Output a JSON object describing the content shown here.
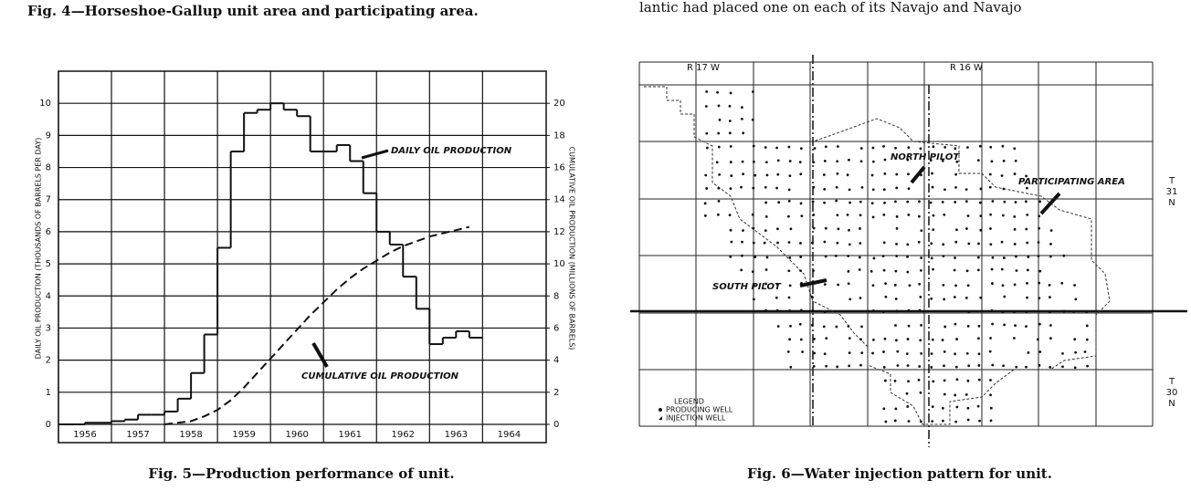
{
  "header": {
    "left_caption": "Fig. 4—Horseshoe-Gallup unit area and participating area.",
    "right_text": "lantic had placed one on each of its Navajo and Navajo"
  },
  "chart_data": {
    "type": "line",
    "caption": "Fig. 5—Production performance of unit.",
    "ylabel": "DAILY OIL PRODUCTION (THOUSANDS OF BARRELS PER DAY)",
    "y2label": "CUMULATIVE OIL PRODUCTION (MILLIONS OF BARRELS)",
    "x": [
      1956.0,
      1956.25,
      1956.5,
      1956.75,
      1957.0,
      1957.25,
      1957.5,
      1957.75,
      1958.0,
      1958.25,
      1958.5,
      1958.75,
      1959.0,
      1959.25,
      1959.5,
      1959.75,
      1960.0,
      1960.25,
      1960.5,
      1960.75,
      1961.0,
      1961.25,
      1961.5,
      1961.75,
      1962.0,
      1962.25,
      1962.5,
      1962.75,
      1963.0,
      1963.25,
      1963.5,
      1963.75
    ],
    "series": [
      {
        "name": "DAILY OIL PRODUCTION",
        "color": "#111",
        "step": true,
        "values": [
          0,
          0,
          0.05,
          0.05,
          0.1,
          0.15,
          0.3,
          0.3,
          0.4,
          0.8,
          1.6,
          2.8,
          5.5,
          8.5,
          9.7,
          9.8,
          10.0,
          9.8,
          9.6,
          8.5,
          8.5,
          8.7,
          8.2,
          7.2,
          6.0,
          5.6,
          4.6,
          3.6,
          2.5,
          2.7,
          2.9,
          2.7
        ]
      },
      {
        "name": "CUMULATIVE OIL PRODUCTION",
        "color": "#111",
        "axis": "y2",
        "dashed": true,
        "values": [
          null,
          null,
          null,
          null,
          null,
          null,
          null,
          null,
          0,
          0.1,
          0.2,
          0.5,
          0.9,
          1.5,
          2.3,
          3.2,
          4.1,
          5.0,
          5.9,
          6.8,
          7.6,
          8.4,
          9.1,
          9.7,
          10.2,
          10.7,
          11.1,
          11.4,
          11.7,
          11.9,
          12.1,
          12.3
        ]
      }
    ],
    "xlim": [
      1956,
      1965.2
    ],
    "xticks": [
      1956,
      1957,
      1958,
      1959,
      1960,
      1961,
      1962,
      1963,
      1964
    ],
    "ylim": [
      0,
      11
    ],
    "yticks": [
      0,
      1,
      2,
      3,
      4,
      5,
      6,
      7,
      8,
      9,
      10
    ],
    "y2lim": [
      0,
      22
    ],
    "y2ticks": [
      0,
      2,
      4,
      6,
      8,
      10,
      12,
      14,
      16,
      18,
      20
    ],
    "grid": true
  },
  "map": {
    "caption": "Fig. 6—Water injection pattern for unit.",
    "range_west": "R 17 W",
    "range_east": "R 16 W",
    "north_pilot": "NORTH PILOT",
    "south_pilot": "SOUTH PILOT",
    "participating_area": "PARTICIPATING AREA",
    "township_north": [
      "T",
      "31",
      "N"
    ],
    "township_south": [
      "T",
      "30",
      "N"
    ],
    "legend": {
      "title": "LEGEND",
      "items": [
        "PRODUCING WELL",
        "INJECTION WELL"
      ]
    }
  }
}
